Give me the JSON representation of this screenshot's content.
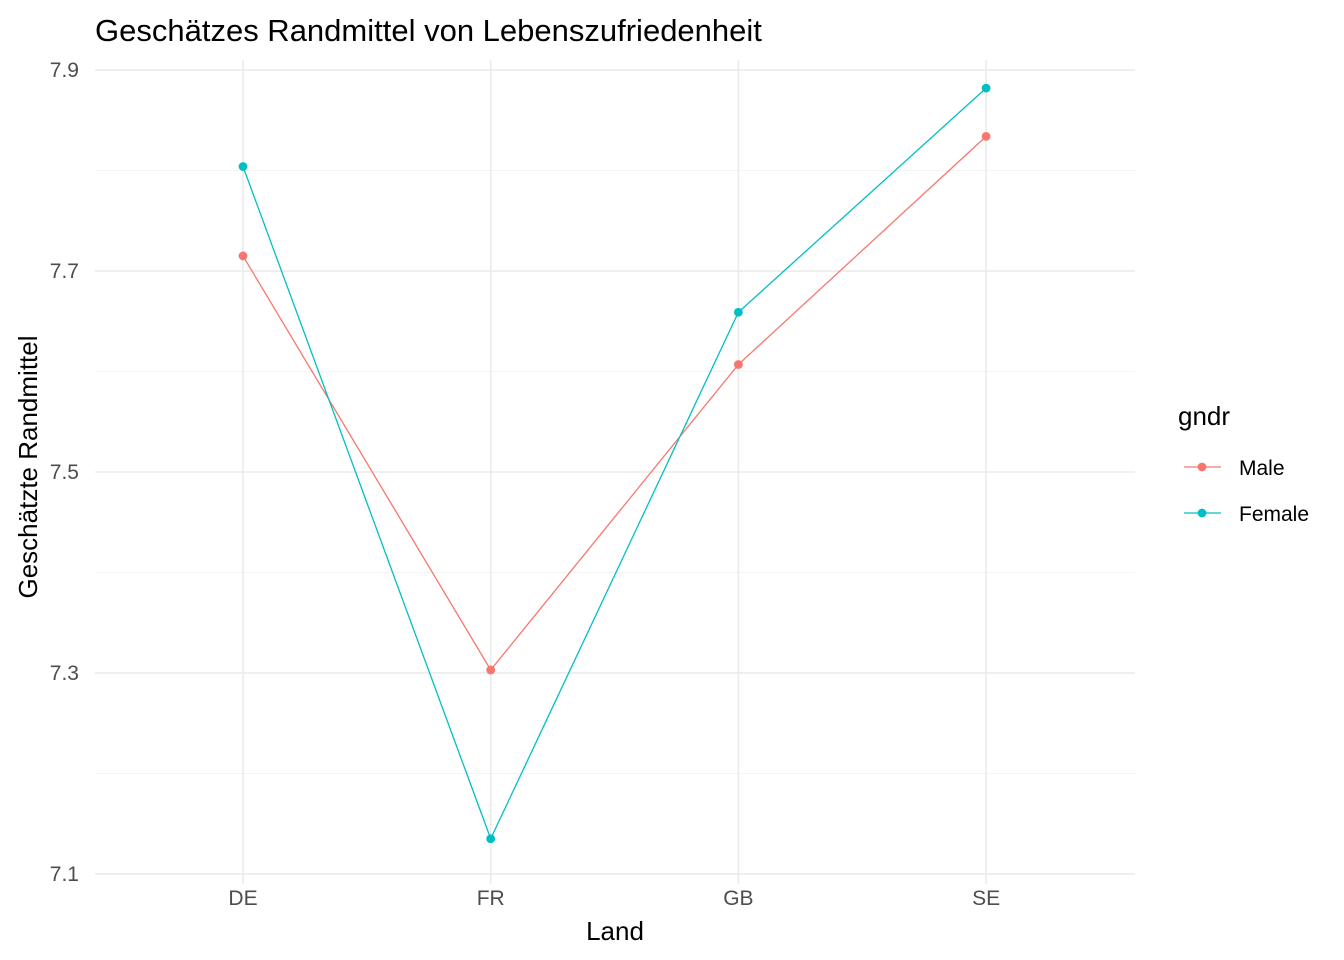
{
  "chart_data": {
    "type": "line",
    "title": "Geschätzes Randmittel von Lebenszufriedenheit",
    "xlabel": "Land",
    "ylabel": "Geschätzte Randmittel",
    "categories": [
      "DE",
      "FR",
      "GB",
      "SE"
    ],
    "ylim": [
      7.09,
      7.91
    ],
    "yticks": [
      7.1,
      7.3,
      7.5,
      7.7,
      7.9
    ],
    "ytick_labels": [
      "7.1",
      "7.3",
      "7.5",
      "7.7",
      "7.9"
    ],
    "y_minor_ticks": [
      7.2,
      7.4,
      7.6,
      7.8
    ],
    "grid": true,
    "legend": {
      "title": "gndr",
      "position": "right"
    },
    "series": [
      {
        "name": "Male",
        "color": "#F8766D",
        "values": [
          7.715,
          7.303,
          7.607,
          7.834
        ]
      },
      {
        "name": "Female",
        "color": "#00BFC4",
        "values": [
          7.804,
          7.135,
          7.659,
          7.882
        ]
      }
    ]
  }
}
